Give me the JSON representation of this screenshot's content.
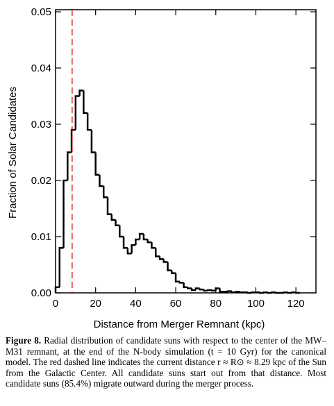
{
  "chart_data": {
    "type": "histogram",
    "xlabel": "Distance from Merger Remnant (kpc)",
    "ylabel": "Fraction of Solar Candidates",
    "bins": [
      0,
      2,
      4,
      6,
      8,
      10,
      12,
      14,
      16,
      18,
      20,
      22,
      24,
      26,
      28,
      30,
      32,
      34,
      36,
      38,
      40,
      42,
      44,
      46,
      48,
      50,
      52,
      54,
      56,
      58,
      60,
      62,
      64,
      66,
      68,
      70,
      72,
      74,
      76,
      78,
      80,
      82,
      84,
      86,
      88,
      90,
      92,
      94,
      96,
      98,
      100,
      102,
      104,
      106,
      108,
      110,
      112,
      114,
      116,
      118,
      120,
      122
    ],
    "values": [
      0.001,
      0.008,
      0.02,
      0.025,
      0.029,
      0.035,
      0.036,
      0.032,
      0.029,
      0.025,
      0.021,
      0.019,
      0.017,
      0.014,
      0.013,
      0.012,
      0.01,
      0.008,
      0.007,
      0.0085,
      0.0095,
      0.0105,
      0.0095,
      0.009,
      0.008,
      0.0065,
      0.006,
      0.0055,
      0.004,
      0.0035,
      0.002,
      0.0018,
      0.001,
      0.0008,
      0.0005,
      0.0008,
      0.0006,
      0.0004,
      0.0005,
      0.0004,
      0.0008,
      0.0002,
      0.0002,
      0.0003,
      0.0001,
      0.0002,
      0.0001,
      0.0001,
      0,
      0.0001,
      0.0001,
      0,
      0.0001,
      0,
      0.0001,
      0,
      0,
      0.0001,
      0,
      0.0001,
      0
    ],
    "color": "#000000",
    "reference_line": {
      "x": 8.29,
      "color": "#d00000"
    },
    "xlim": [
      0,
      130
    ],
    "ylim": [
      0,
      0.05
    ],
    "xticks": [
      0,
      20,
      40,
      60,
      80,
      100,
      120
    ],
    "yticks": [
      {
        "value": 0,
        "label": "0.00"
      },
      {
        "value": 0.01,
        "label": "0.01"
      },
      {
        "value": 0.02,
        "label": "0.02"
      },
      {
        "value": 0.03,
        "label": "0.03"
      },
      {
        "value": 0.04,
        "label": "0.04"
      },
      {
        "value": 0.05,
        "label": "0.05"
      }
    ]
  },
  "caption": {
    "label": "Figure 8.",
    "text": "Radial distribution of candidate suns with respect to the center of the MW–M31 remnant, at the end of the N-body simulation (t = 10 Gyr) for the canonical model. The red dashed line indicates the current distance r ≈ R⊙ ≈ 8.29 kpc of the Sun from the Galactic Center. All candidate suns start out from that distance. Most candidate suns (85.4%) migrate outward during the merger process."
  }
}
